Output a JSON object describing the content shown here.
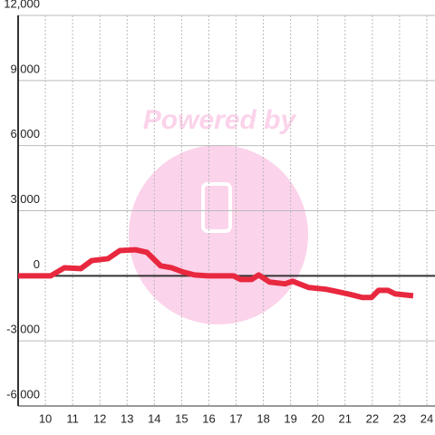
{
  "chart_data": {
    "type": "line",
    "watermark": "Powered by",
    "x": [
      9.0,
      10.2,
      10.7,
      11.3,
      11.7,
      12.3,
      12.73,
      13.3,
      13.73,
      14.23,
      14.63,
      15.07,
      15.47,
      15.97,
      16.9,
      17.17,
      17.57,
      17.83,
      18.23,
      18.8,
      19.07,
      19.67,
      20.3,
      20.8,
      21.23,
      21.63,
      21.97,
      22.23,
      22.57,
      22.83,
      23.5
    ],
    "series": [
      {
        "color": "#e8283f",
        "values": [
          0,
          0,
          370,
          330,
          700,
          790,
          1160,
          1200,
          1080,
          460,
          370,
          170,
          40,
          0,
          0,
          -170,
          -170,
          40,
          -290,
          -370,
          -250,
          -540,
          -620,
          -750,
          -870,
          -1000,
          -1000,
          -670,
          -670,
          -830,
          -920
        ]
      }
    ],
    "xlim": [
      9,
      24.3
    ],
    "xticks": [
      10,
      11,
      12,
      13,
      14,
      15,
      16,
      17,
      18,
      19,
      20,
      21,
      22,
      23,
      24
    ],
    "ylim": [
      -6000,
      12000
    ],
    "yticks": [
      {
        "value": -6000,
        "label": "-6,000"
      },
      {
        "value": -3000,
        "label": "-3,000"
      },
      0,
      {
        "value": 3000,
        "label": "3,000"
      },
      {
        "value": 6000,
        "label": "6,000"
      },
      {
        "value": 9000,
        "label": "9,000"
      },
      {
        "value": 12000,
        "label": "12,000"
      }
    ],
    "grid": true
  }
}
